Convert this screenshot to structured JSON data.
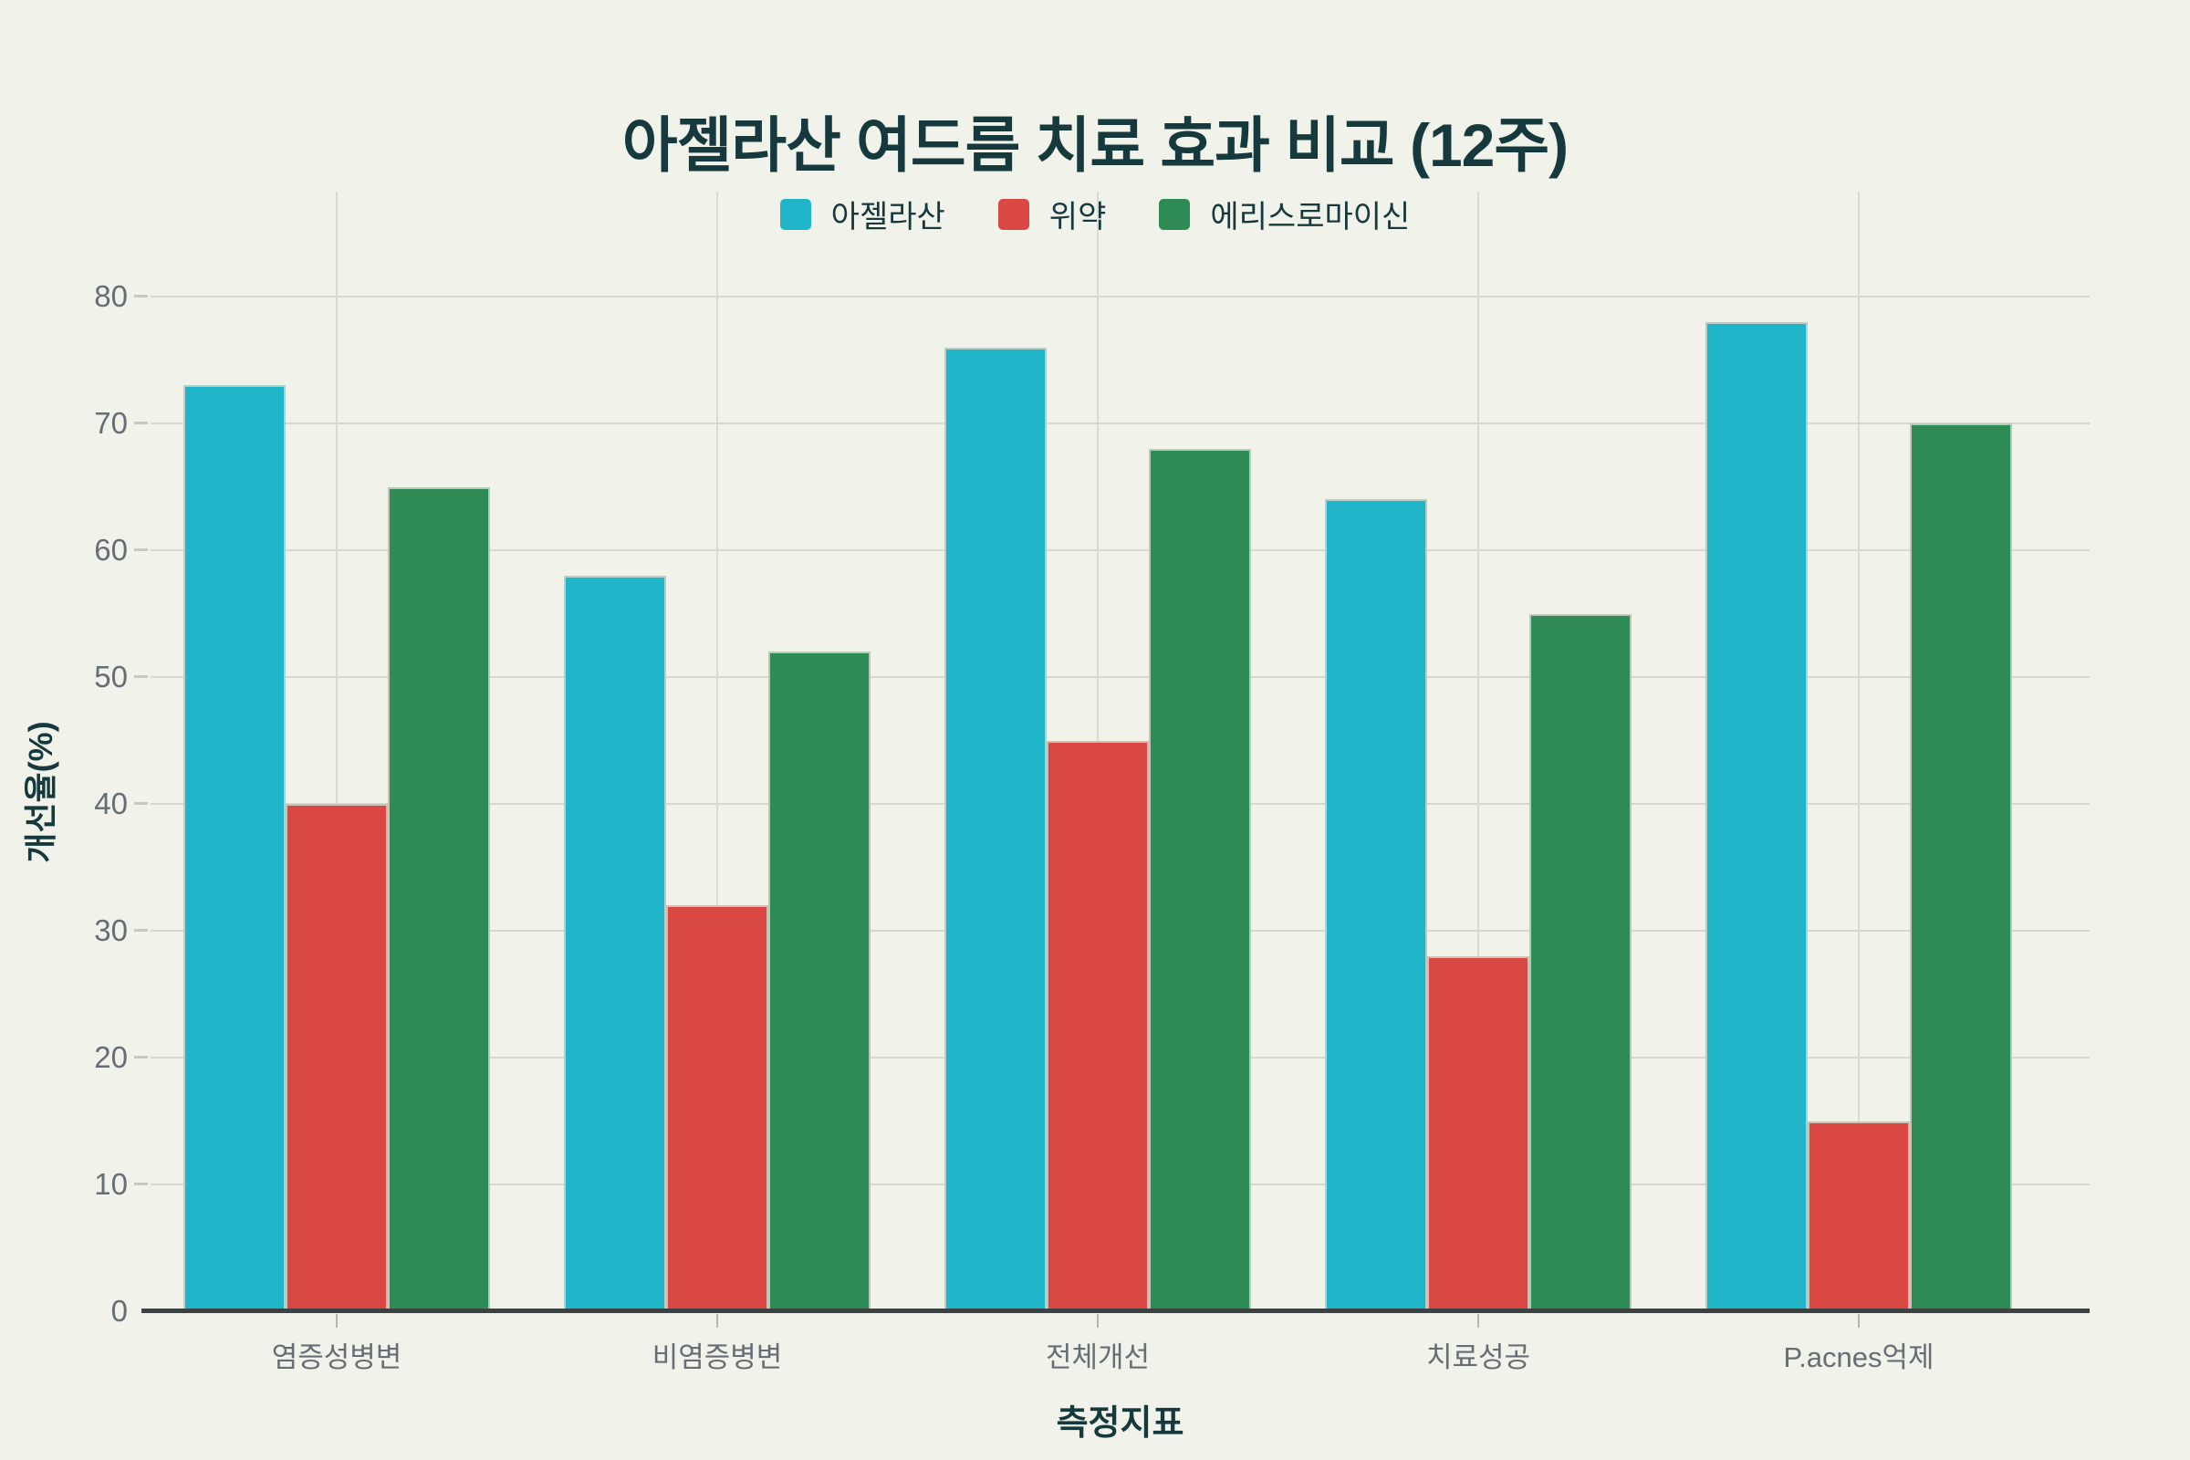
{
  "title": "아젤라산 여드름 치료 효과 비교 (12주)",
  "chart_data": {
    "type": "bar",
    "title": "아젤라산 여드름 치료 효과 비교 (12주)",
    "categories": [
      "염증성병변",
      "비염증병변",
      "전체개선",
      "치료성공",
      "P.acnes억제"
    ],
    "series": [
      {
        "name": "아젤라산",
        "color": "#21b5ca",
        "values": [
          73,
          58,
          76,
          64,
          78
        ]
      },
      {
        "name": "위약",
        "color": "#d94843",
        "values": [
          40,
          32,
          45,
          28,
          15
        ]
      },
      {
        "name": "에리스로마이신",
        "color": "#2e8b55",
        "values": [
          65,
          52,
          68,
          55,
          70
        ]
      }
    ],
    "xlabel": "측정지표",
    "ylabel": "개선율(%)",
    "ylim": [
      0,
      80
    ],
    "y_ticks": [
      0,
      10,
      20,
      30,
      40,
      50,
      60,
      70,
      80
    ],
    "grid": true,
    "legend_position": "top"
  },
  "colors": {
    "background": "#f1f2ea",
    "title_text": "#16393e",
    "axis_label_text": "#646e74",
    "gridline": "#d6d7ce",
    "axis_line": "#3c4141"
  }
}
